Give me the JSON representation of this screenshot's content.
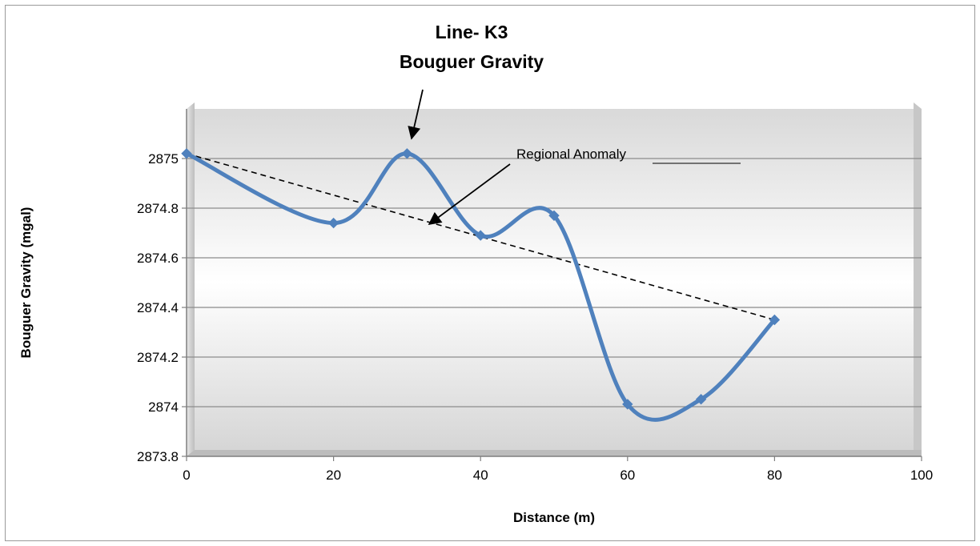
{
  "chart_data": {
    "type": "line",
    "title_line1": "Line- K3",
    "title_line2": "Bouguer Gravity",
    "xlabel": "Distance (m)",
    "ylabel": "Bouguer Gravity (mgal)",
    "xlim": [
      0,
      100
    ],
    "ylim": [
      2873.8,
      2875.2
    ],
    "x_ticks": [
      0,
      20,
      40,
      60,
      80,
      100
    ],
    "x_tick_labels": [
      "0",
      "20",
      "40",
      "60",
      "80",
      "100"
    ],
    "y_ticks": [
      2873.8,
      2874,
      2874.2,
      2874.4,
      2874.6,
      2874.8,
      2875
    ],
    "y_tick_labels": [
      "2873.8",
      "2874",
      "2874.2",
      "2874.4",
      "2874.6",
      "2874.8",
      "2875"
    ],
    "grid": true,
    "series": [
      {
        "x": [
          0,
          20,
          30,
          40,
          50,
          60,
          70,
          80
        ],
        "values": [
          2875.02,
          2874.74,
          2875.02,
          2874.69,
          2874.77,
          2874.01,
          2874.03,
          2874.35
        ],
        "color": "#4f81bd",
        "smooth": true,
        "marker": "diamond"
      }
    ],
    "regional_trend": {
      "x": [
        0,
        80
      ],
      "y": [
        2875.02,
        2874.35
      ],
      "style": "dashed",
      "color": "#000000"
    },
    "annotations": [
      {
        "text": "Regional Anomaly"
      }
    ]
  }
}
